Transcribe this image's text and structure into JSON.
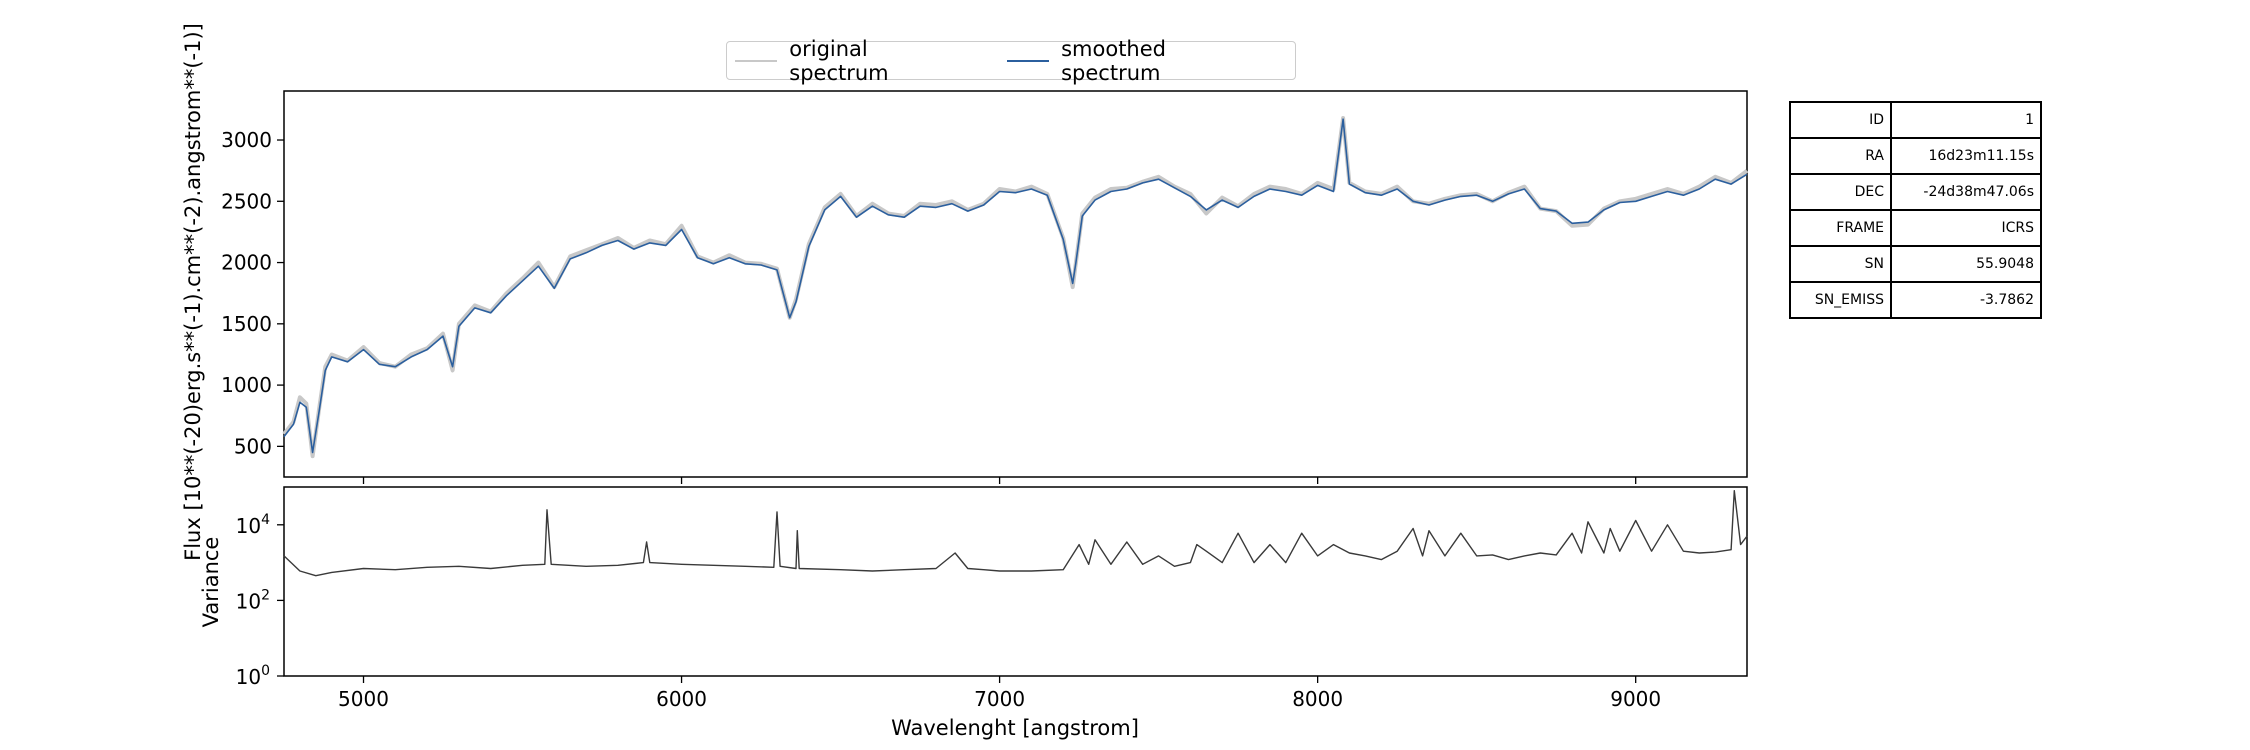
{
  "legend": {
    "original_label": "original spectrum",
    "smoothed_label": "smoothed spectrum"
  },
  "info_table": [
    {
      "key": "ID",
      "value": "1"
    },
    {
      "key": "RA",
      "value": "16d23m11.15s"
    },
    {
      "key": "DEC",
      "value": "-24d38m47.06s"
    },
    {
      "key": "FRAME",
      "value": "ICRS"
    },
    {
      "key": "SN",
      "value": "55.9048"
    },
    {
      "key": "SN_EMISS",
      "value": "-3.7862"
    }
  ],
  "colors": {
    "original": "#c8c8c8",
    "smoothed": "#2b5f9e",
    "variance": "#3a3a3a",
    "axes": "#000000"
  },
  "chart_data": [
    {
      "type": "line",
      "ylabel": "Flux [10**(-20)erg.s**(-1).cm**(-2).angstrom**(-1)]",
      "xlim": [
        4750,
        9350
      ],
      "ylim": [
        250,
        3400
      ],
      "yticks": [
        500,
        1000,
        1500,
        2000,
        2500,
        3000
      ],
      "xticks": [
        5000,
        6000,
        7000,
        8000,
        9000
      ],
      "x": [
        4750,
        4780,
        4800,
        4820,
        4840,
        4860,
        4880,
        4900,
        4950,
        5000,
        5050,
        5100,
        5150,
        5200,
        5250,
        5280,
        5300,
        5350,
        5400,
        5450,
        5500,
        5550,
        5600,
        5650,
        5700,
        5750,
        5800,
        5850,
        5900,
        5950,
        6000,
        6050,
        6080,
        6100,
        6150,
        6200,
        6250,
        6300,
        6340,
        6360,
        6400,
        6450,
        6500,
        6550,
        6600,
        6650,
        6700,
        6750,
        6800,
        6850,
        6900,
        6950,
        7000,
        7050,
        7100,
        7150,
        7200,
        7230,
        7240,
        7260,
        7300,
        7350,
        7400,
        7450,
        7500,
        7550,
        7600,
        7650,
        7700,
        7750,
        7800,
        7850,
        7900,
        7950,
        8000,
        8050,
        8080,
        8100,
        8150,
        8200,
        8250,
        8300,
        8350,
        8400,
        8450,
        8500,
        8550,
        8600,
        8650,
        8700,
        8750,
        8800,
        8850,
        8900,
        8950,
        9000,
        9050,
        9100,
        9150,
        9200,
        9250,
        9300,
        9350
      ],
      "series": [
        {
          "name": "original spectrum",
          "values": [
            600,
            700,
            900,
            850,
            420,
            800,
            1150,
            1250,
            1200,
            1310,
            1180,
            1150,
            1250,
            1300,
            1420,
            1120,
            1500,
            1650,
            1600,
            1750,
            1870,
            2000,
            1800,
            2050,
            2100,
            2150,
            2200,
            2120,
            2180,
            2150,
            2300,
            2050,
            2020,
            2000,
            2060,
            2000,
            1990,
            1950,
            1550,
            1700,
            2150,
            2450,
            2560,
            2380,
            2480,
            2400,
            2380,
            2480,
            2470,
            2500,
            2430,
            2480,
            2600,
            2580,
            2620,
            2560,
            2200,
            1800,
            2000,
            2400,
            2530,
            2600,
            2610,
            2660,
            2700,
            2620,
            2560,
            2400,
            2530,
            2460,
            2560,
            2620,
            2600,
            2560,
            2650,
            2600,
            3180,
            2650,
            2580,
            2560,
            2620,
            2500,
            2480,
            2520,
            2550,
            2560,
            2500,
            2570,
            2620,
            2440,
            2420,
            2300,
            2310,
            2440,
            2500,
            2520,
            2560,
            2600,
            2560,
            2620,
            2700,
            2650,
            2750
          ]
        },
        {
          "name": "smoothed spectrum",
          "values": [
            580,
            680,
            860,
            820,
            450,
            780,
            1120,
            1230,
            1190,
            1290,
            1170,
            1150,
            1230,
            1290,
            1400,
            1150,
            1480,
            1630,
            1590,
            1730,
            1850,
            1970,
            1790,
            2030,
            2080,
            2140,
            2180,
            2110,
            2160,
            2140,
            2270,
            2040,
            2010,
            1990,
            2040,
            1990,
            1980,
            1940,
            1550,
            1680,
            2130,
            2430,
            2540,
            2370,
            2460,
            2390,
            2370,
            2460,
            2450,
            2480,
            2420,
            2470,
            2580,
            2570,
            2600,
            2550,
            2190,
            1830,
            2000,
            2380,
            2510,
            2580,
            2600,
            2650,
            2680,
            2610,
            2540,
            2430,
            2510,
            2450,
            2540,
            2600,
            2580,
            2550,
            2630,
            2580,
            3170,
            2640,
            2570,
            2550,
            2600,
            2500,
            2470,
            2510,
            2540,
            2550,
            2500,
            2560,
            2600,
            2440,
            2420,
            2320,
            2330,
            2430,
            2490,
            2500,
            2540,
            2580,
            2550,
            2600,
            2680,
            2640,
            2720
          ]
        }
      ]
    },
    {
      "type": "line",
      "ylabel": "Variance",
      "xlabel": "Wavelenght [angstrom]",
      "xlim": [
        4750,
        9350
      ],
      "yscale": "log",
      "ylim": [
        1,
        100000
      ],
      "ytick_labels": [
        "10^0",
        "10^2",
        "10^4"
      ],
      "xticks": [
        5000,
        6000,
        7000,
        8000,
        9000
      ],
      "x": [
        4750,
        4800,
        4850,
        4900,
        5000,
        5100,
        5200,
        5300,
        5400,
        5500,
        5570,
        5577,
        5590,
        5700,
        5800,
        5880,
        5890,
        5900,
        6000,
        6100,
        6200,
        6290,
        6300,
        6310,
        6360,
        6364,
        6370,
        6500,
        6600,
        6700,
        6800,
        6860,
        6900,
        6950,
        7000,
        7100,
        7200,
        7250,
        7280,
        7300,
        7350,
        7400,
        7450,
        7500,
        7550,
        7600,
        7620,
        7650,
        7700,
        7750,
        7800,
        7850,
        7900,
        7950,
        8000,
        8050,
        8100,
        8150,
        8200,
        8250,
        8300,
        8330,
        8350,
        8400,
        8450,
        8500,
        8550,
        8600,
        8650,
        8700,
        8750,
        8800,
        8830,
        8850,
        8900,
        8920,
        8950,
        9000,
        9050,
        9100,
        9150,
        9200,
        9250,
        9300,
        9310,
        9330,
        9350
      ],
      "series": [
        {
          "name": "",
          "values": [
            1500,
            600,
            450,
            550,
            700,
            650,
            750,
            800,
            700,
            850,
            900,
            25000,
            900,
            800,
            850,
            1000,
            3500,
            1000,
            900,
            850,
            800,
            750,
            22000,
            800,
            700,
            7000,
            700,
            650,
            600,
            650,
            700,
            1800,
            700,
            650,
            600,
            600,
            650,
            3000,
            900,
            4000,
            900,
            3500,
            900,
            1500,
            800,
            1000,
            3000,
            2000,
            1000,
            6000,
            1000,
            3000,
            1000,
            6000,
            1500,
            3000,
            1800,
            1500,
            1200,
            2000,
            8000,
            1500,
            7000,
            1500,
            6000,
            1500,
            1600,
            1200,
            1500,
            1800,
            1600,
            6000,
            1800,
            12000,
            1800,
            8000,
            2000,
            13000,
            2000,
            10000,
            2000,
            1800,
            1900,
            2200,
            80000,
            3000,
            5000
          ]
        }
      ]
    }
  ]
}
